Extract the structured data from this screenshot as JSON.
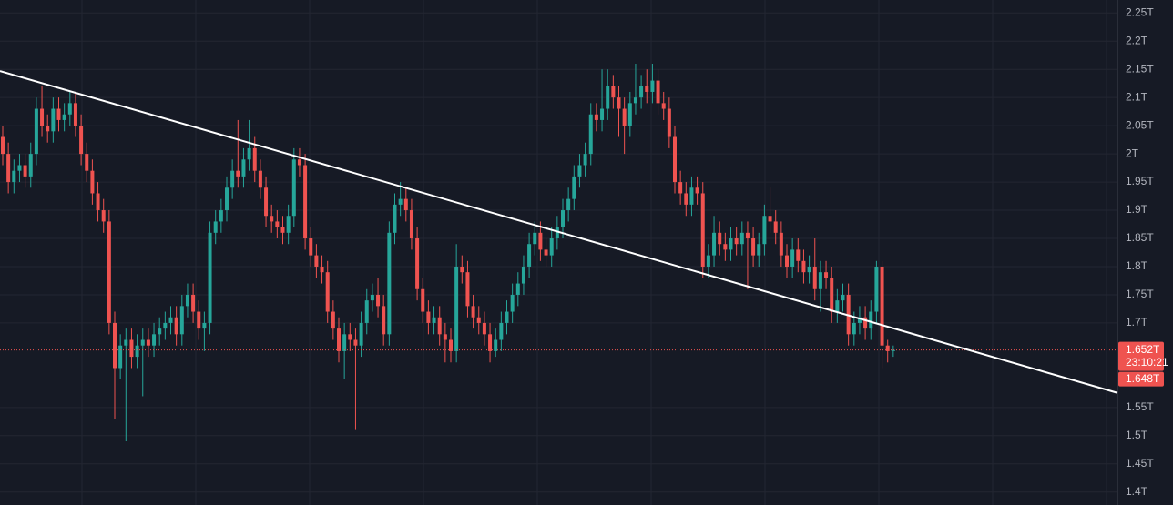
{
  "chart_data": {
    "type": "candlestick",
    "open": [
      2.03,
      2.0,
      1.95,
      1.97,
      1.98,
      1.96,
      2.0,
      2.08,
      2.05,
      2.04,
      2.08,
      2.06,
      2.07,
      2.09,
      2.05,
      2.0,
      1.97,
      1.93,
      1.9,
      1.88,
      1.7,
      1.62,
      1.66,
      1.67,
      1.64,
      1.66,
      1.67,
      1.66,
      1.68,
      1.69,
      1.7,
      1.71,
      1.68,
      1.73,
      1.75,
      1.72,
      1.69,
      1.7,
      1.86,
      1.88,
      1.9,
      1.94,
      1.97,
      1.96,
      1.99,
      2.01,
      1.97,
      1.94,
      1.89,
      1.88,
      1.87,
      1.86,
      1.89,
      1.99,
      1.98,
      1.85,
      1.82,
      1.8,
      1.79,
      1.72,
      1.69,
      1.65,
      1.68,
      1.67,
      1.66,
      1.7,
      1.74,
      1.75,
      1.73,
      1.68,
      1.86,
      1.91,
      1.92,
      1.9,
      1.85,
      1.76,
      1.72,
      1.7,
      1.71,
      1.68,
      1.67,
      1.65,
      1.8,
      1.79,
      1.73,
      1.71,
      1.7,
      1.68,
      1.65,
      1.67,
      1.7,
      1.72,
      1.75,
      1.77,
      1.8,
      1.84,
      1.86,
      1.83,
      1.82,
      1.85,
      1.87,
      1.9,
      1.92,
      1.96,
      1.98,
      2.0,
      2.07,
      2.06,
      2.08,
      2.12,
      2.1,
      2.08,
      2.05,
      2.09,
      2.1,
      2.12,
      2.11,
      2.13,
      2.09,
      2.08,
      2.03,
      1.95,
      1.93,
      1.91,
      1.94,
      1.93,
      1.8,
      1.82,
      1.86,
      1.84,
      1.83,
      1.85,
      1.84,
      1.86,
      1.85,
      1.82,
      1.84,
      1.89,
      1.88,
      1.86,
      1.82,
      1.8,
      1.83,
      1.81,
      1.79,
      1.8,
      1.76,
      1.79,
      1.78,
      1.72,
      1.74,
      1.75,
      1.68,
      1.7,
      1.71,
      1.69,
      1.72,
      1.8,
      1.66,
      1.65
    ],
    "high": [
      2.05,
      2.02,
      1.99,
      2.0,
      2.0,
      2.02,
      2.1,
      2.12,
      2.07,
      2.1,
      2.1,
      2.09,
      2.11,
      2.11,
      2.07,
      2.02,
      1.99,
      1.95,
      1.92,
      1.9,
      1.72,
      1.68,
      1.69,
      1.69,
      1.68,
      1.69,
      1.69,
      1.7,
      1.71,
      1.72,
      1.73,
      1.73,
      1.75,
      1.77,
      1.77,
      1.74,
      1.72,
      1.88,
      1.9,
      1.92,
      1.96,
      1.99,
      2.06,
      2.01,
      2.06,
      2.03,
      1.99,
      1.96,
      1.91,
      1.9,
      1.89,
      1.91,
      2.01,
      2.01,
      2.0,
      1.87,
      1.84,
      1.82,
      1.81,
      1.74,
      1.71,
      1.7,
      1.7,
      1.69,
      1.72,
      1.76,
      1.77,
      1.78,
      1.75,
      1.88,
      1.93,
      1.95,
      1.94,
      1.92,
      1.87,
      1.78,
      1.74,
      1.73,
      1.73,
      1.7,
      1.69,
      1.84,
      1.82,
      1.81,
      1.75,
      1.73,
      1.72,
      1.7,
      1.69,
      1.72,
      1.74,
      1.77,
      1.79,
      1.82,
      1.86,
      1.88,
      1.88,
      1.85,
      1.87,
      1.89,
      1.92,
      1.94,
      1.98,
      2.0,
      2.02,
      2.09,
      2.09,
      2.15,
      2.15,
      2.14,
      2.12,
      2.1,
      2.11,
      2.16,
      2.14,
      2.15,
      2.16,
      2.15,
      2.11,
      2.1,
      2.05,
      1.97,
      1.95,
      1.96,
      1.96,
      1.95,
      1.84,
      1.89,
      1.88,
      1.86,
      1.87,
      1.87,
      1.88,
      1.88,
      1.87,
      1.86,
      1.91,
      1.94,
      1.9,
      1.88,
      1.84,
      1.85,
      1.85,
      1.83,
      1.82,
      1.85,
      1.81,
      1.81,
      1.8,
      1.76,
      1.77,
      1.77,
      1.72,
      1.73,
      1.73,
      1.74,
      1.81,
      1.81,
      1.67,
      1.66
    ],
    "low": [
      1.98,
      1.93,
      1.93,
      1.95,
      1.94,
      1.94,
      1.98,
      2.03,
      2.02,
      2.02,
      2.04,
      2.04,
      2.05,
      2.03,
      1.98,
      1.95,
      1.91,
      1.88,
      1.86,
      1.68,
      1.53,
      1.6,
      1.49,
      1.62,
      1.62,
      1.57,
      1.64,
      1.64,
      1.66,
      1.67,
      1.68,
      1.66,
      1.66,
      1.71,
      1.7,
      1.67,
      1.65,
      1.68,
      1.84,
      1.86,
      1.88,
      1.92,
      1.94,
      1.94,
      1.97,
      1.95,
      1.92,
      1.87,
      1.86,
      1.85,
      1.84,
      1.84,
      1.87,
      1.96,
      1.83,
      1.8,
      1.78,
      1.77,
      1.7,
      1.67,
      1.63,
      1.6,
      1.65,
      1.51,
      1.64,
      1.68,
      1.72,
      1.71,
      1.66,
      1.66,
      1.84,
      1.89,
      1.88,
      1.83,
      1.74,
      1.7,
      1.68,
      1.68,
      1.66,
      1.63,
      1.63,
      1.63,
      1.77,
      1.71,
      1.69,
      1.68,
      1.66,
      1.63,
      1.64,
      1.65,
      1.68,
      1.7,
      1.73,
      1.75,
      1.78,
      1.82,
      1.81,
      1.8,
      1.8,
      1.83,
      1.85,
      1.88,
      1.9,
      1.94,
      1.96,
      1.98,
      2.04,
      2.04,
      2.06,
      2.08,
      2.03,
      2.0,
      2.03,
      2.07,
      2.08,
      2.09,
      2.09,
      2.07,
      2.06,
      2.01,
      1.93,
      1.91,
      1.89,
      1.89,
      1.91,
      1.78,
      1.78,
      1.8,
      1.82,
      1.81,
      1.81,
      1.82,
      1.82,
      1.76,
      1.8,
      1.8,
      1.82,
      1.86,
      1.84,
      1.8,
      1.78,
      1.78,
      1.79,
      1.77,
      1.77,
      1.74,
      1.72,
      1.76,
      1.7,
      1.7,
      1.72,
      1.66,
      1.66,
      1.68,
      1.67,
      1.67,
      1.7,
      1.62,
      1.63,
      1.64
    ],
    "close": [
      2.0,
      1.95,
      1.97,
      1.98,
      1.96,
      2.0,
      2.08,
      2.05,
      2.04,
      2.08,
      2.06,
      2.07,
      2.09,
      2.05,
      2.0,
      1.97,
      1.93,
      1.9,
      1.88,
      1.7,
      1.62,
      1.66,
      1.67,
      1.64,
      1.66,
      1.67,
      1.66,
      1.68,
      1.69,
      1.7,
      1.71,
      1.68,
      1.73,
      1.75,
      1.72,
      1.69,
      1.7,
      1.86,
      1.88,
      1.9,
      1.94,
      1.97,
      1.96,
      1.99,
      2.01,
      1.97,
      1.94,
      1.89,
      1.88,
      1.87,
      1.86,
      1.89,
      1.99,
      1.98,
      1.85,
      1.82,
      1.8,
      1.79,
      1.72,
      1.69,
      1.65,
      1.68,
      1.67,
      1.66,
      1.7,
      1.74,
      1.75,
      1.73,
      1.68,
      1.86,
      1.91,
      1.92,
      1.9,
      1.85,
      1.76,
      1.72,
      1.7,
      1.71,
      1.68,
      1.67,
      1.65,
      1.8,
      1.79,
      1.73,
      1.71,
      1.7,
      1.68,
      1.65,
      1.67,
      1.7,
      1.72,
      1.75,
      1.77,
      1.8,
      1.84,
      1.86,
      1.83,
      1.82,
      1.85,
      1.87,
      1.9,
      1.92,
      1.96,
      1.98,
      2.0,
      2.07,
      2.06,
      2.08,
      2.12,
      2.1,
      2.08,
      2.05,
      2.09,
      2.1,
      2.12,
      2.11,
      2.13,
      2.09,
      2.08,
      2.03,
      1.95,
      1.93,
      1.91,
      1.94,
      1.93,
      1.8,
      1.82,
      1.86,
      1.84,
      1.83,
      1.85,
      1.84,
      1.86,
      1.85,
      1.82,
      1.84,
      1.89,
      1.88,
      1.86,
      1.82,
      1.8,
      1.83,
      1.81,
      1.79,
      1.8,
      1.76,
      1.79,
      1.78,
      1.72,
      1.74,
      1.75,
      1.68,
      1.7,
      1.71,
      1.69,
      1.72,
      1.8,
      1.66,
      1.65,
      1.652
    ],
    "up_color": "#26a69a",
    "down_color": "#ef5350",
    "ylim": [
      1.377,
      2.273
    ],
    "yticks": [
      {
        "value": 1.4,
        "label": "1.4T"
      },
      {
        "value": 1.45,
        "label": "1.45T"
      },
      {
        "value": 1.5,
        "label": "1.5T"
      },
      {
        "value": 1.55,
        "label": "1.55T"
      },
      {
        "value": 1.7,
        "label": "1.7T"
      },
      {
        "value": 1.75,
        "label": "1.75T"
      },
      {
        "value": 1.8,
        "label": "1.8T"
      },
      {
        "value": 1.85,
        "label": "1.85T"
      },
      {
        "value": 1.9,
        "label": "1.9T"
      },
      {
        "value": 1.95,
        "label": "1.95T"
      },
      {
        "value": 2,
        "label": "2T"
      },
      {
        "value": 2.05,
        "label": "2.05T"
      },
      {
        "value": 2.1,
        "label": "2.1T"
      },
      {
        "value": 2.15,
        "label": "2.15T"
      },
      {
        "value": 2.2,
        "label": "2.2T"
      },
      {
        "value": 2.25,
        "label": "2.25T"
      }
    ],
    "grid": true,
    "trendline": [
      2.147,
      1.576
    ],
    "trendline_color": "#ffffff",
    "last_price": {
      "value": 1.652,
      "label": "1.652T",
      "countdown": "23:10:21"
    },
    "second_price": {
      "value": 1.648,
      "label": "1.648T"
    }
  }
}
